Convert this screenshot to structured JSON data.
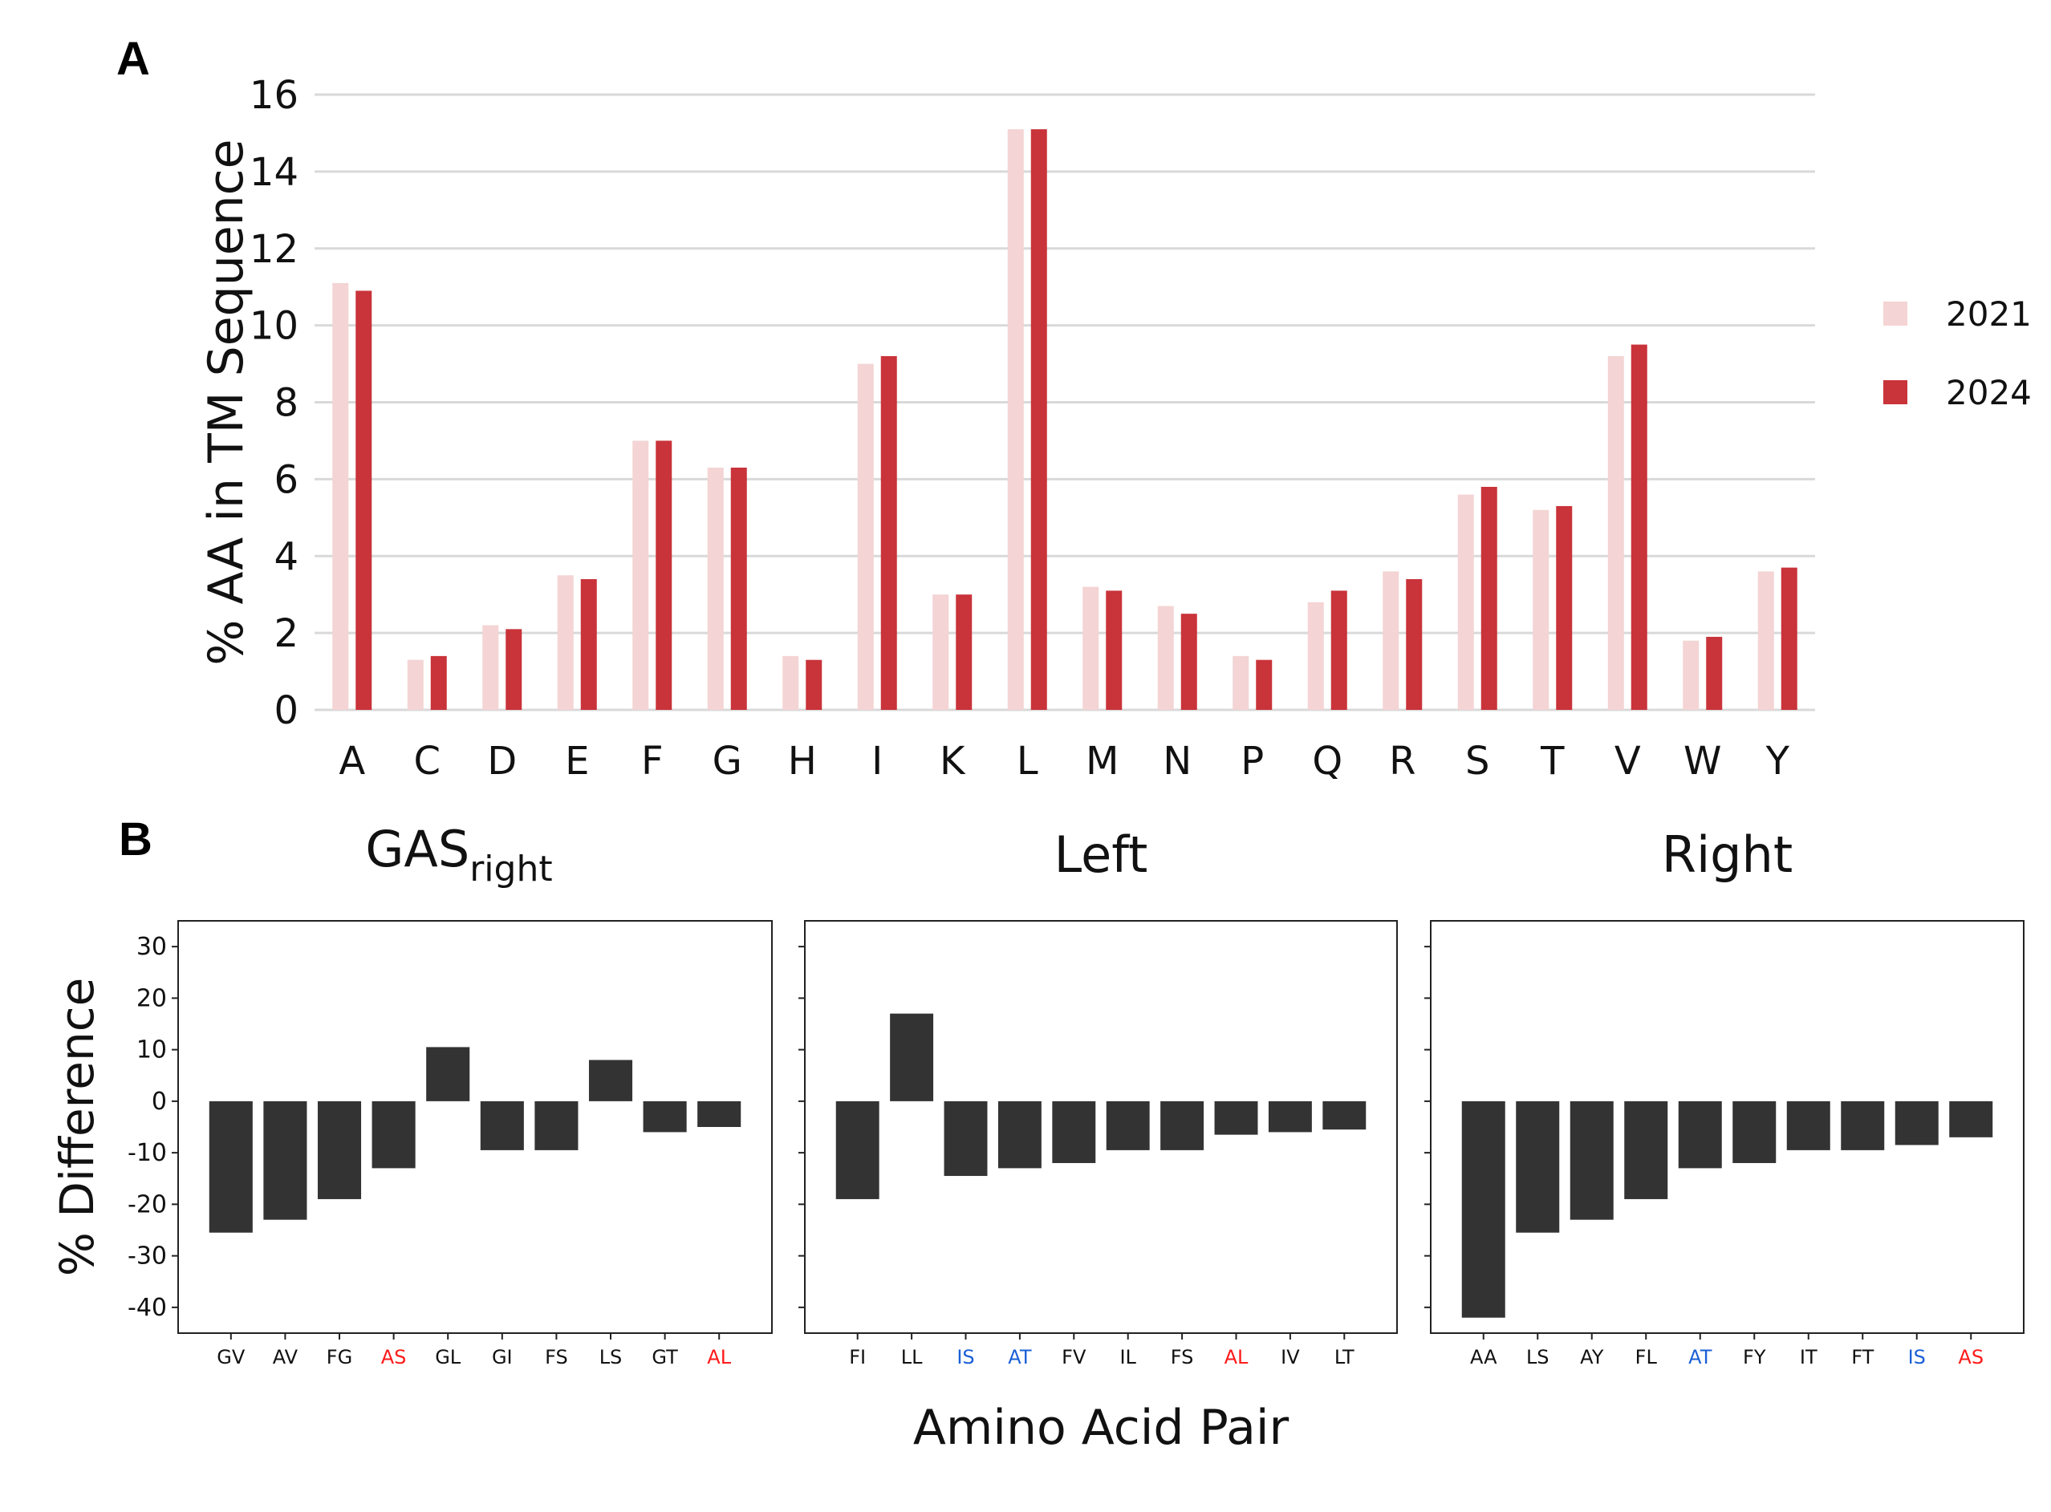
{
  "panel_a_label": "A",
  "panel_b_label": "B",
  "chart_data": [
    {
      "type": "bar",
      "ylabel": "% AA in TM Sequence",
      "xlabel": "",
      "ylim": [
        0,
        16
      ],
      "yticks": [
        0,
        2,
        4,
        6,
        8,
        10,
        12,
        14,
        16
      ],
      "grid": "horizontal",
      "legend_position": "right",
      "categories": [
        "A",
        "C",
        "D",
        "E",
        "F",
        "G",
        "H",
        "I",
        "K",
        "L",
        "M",
        "N",
        "P",
        "Q",
        "R",
        "S",
        "T",
        "V",
        "W",
        "Y"
      ],
      "series": [
        {
          "name": "2021",
          "color": "#f4d4d4",
          "values": [
            11.1,
            1.3,
            2.2,
            3.5,
            7.0,
            6.3,
            1.4,
            9.0,
            3.0,
            15.1,
            3.2,
            2.7,
            1.4,
            2.8,
            3.6,
            5.6,
            5.2,
            9.2,
            1.8,
            3.6
          ]
        },
        {
          "name": "2024",
          "color": "#c9333a",
          "values": [
            10.9,
            1.4,
            2.1,
            3.4,
            7.0,
            6.3,
            1.3,
            9.2,
            3.0,
            15.1,
            3.1,
            2.5,
            1.3,
            3.1,
            3.4,
            5.8,
            5.3,
            9.5,
            1.9,
            3.7
          ]
        }
      ]
    },
    {
      "type": "bar",
      "title_main": "GAS",
      "title_sub": "right",
      "ylabel": "% Difference",
      "xlabel": "Amino Acid Pair",
      "ylim": [
        -45,
        35
      ],
      "yticks": [
        30,
        20,
        10,
        0,
        -10,
        -20,
        -30,
        -40
      ],
      "bar_color": "#333333",
      "categories": [
        "GV",
        "AV",
        "FG",
        "AS",
        "GL",
        "GI",
        "FS",
        "LS",
        "GT",
        "AL"
      ],
      "category_colors": [
        "#111111",
        "#111111",
        "#111111",
        "#ff1a1a",
        "#111111",
        "#111111",
        "#111111",
        "#111111",
        "#111111",
        "#ff1a1a"
      ],
      "values": [
        -25.5,
        -23,
        -19,
        -13,
        10.5,
        -9.5,
        -9.5,
        8,
        -6,
        -5
      ]
    },
    {
      "type": "bar",
      "title_main": "Left",
      "ylabel": "% Difference",
      "xlabel": "Amino Acid Pair",
      "ylim": [
        -45,
        35
      ],
      "bar_color": "#333333",
      "categories": [
        "FI",
        "LL",
        "IS",
        "AT",
        "FV",
        "IL",
        "FS",
        "AL",
        "IV",
        "LT"
      ],
      "category_colors": [
        "#111111",
        "#111111",
        "#1a5fd6",
        "#1a5fd6",
        "#111111",
        "#111111",
        "#111111",
        "#ff1a1a",
        "#111111",
        "#111111"
      ],
      "values": [
        -19,
        17,
        -14.5,
        -13,
        -12,
        -9.5,
        -9.5,
        -6.5,
        -6,
        -5.5
      ]
    },
    {
      "type": "bar",
      "title_main": "Right",
      "ylabel": "% Difference",
      "xlabel": "Amino Acid Pair",
      "ylim": [
        -45,
        35
      ],
      "bar_color": "#333333",
      "categories": [
        "AA",
        "LS",
        "AY",
        "FL",
        "AT",
        "FY",
        "IT",
        "FT",
        "IS",
        "AS"
      ],
      "category_colors": [
        "#111111",
        "#111111",
        "#111111",
        "#111111",
        "#1a5fd6",
        "#111111",
        "#111111",
        "#111111",
        "#1a5fd6",
        "#ff1a1a"
      ],
      "values": [
        -42,
        -25.5,
        -23,
        -19,
        -13,
        -12,
        -9.5,
        -9.5,
        -8.5,
        -7
      ]
    }
  ]
}
